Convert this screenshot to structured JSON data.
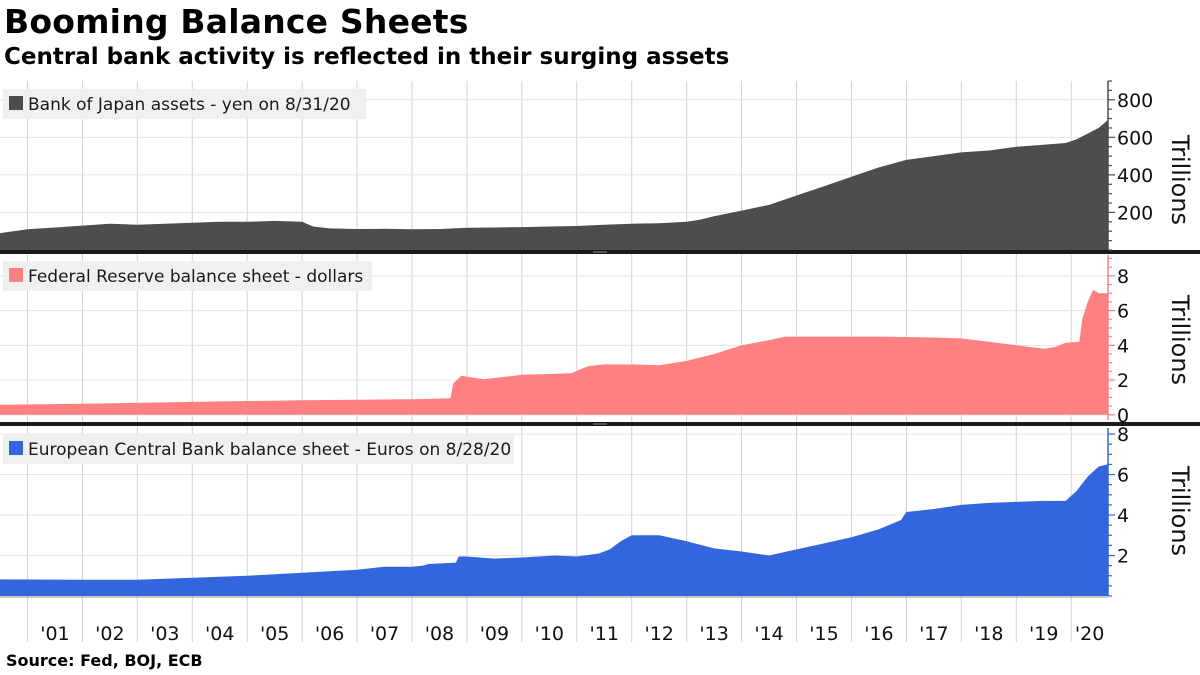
{
  "title": "Booming Balance Sheets",
  "subtitle": "Central bank activity is reflected in their surging assets",
  "source": "Source: Fed, BOJ, ECB",
  "x_axis": {
    "start": 2000.5,
    "end": 2020.67,
    "year_boundaries": [
      2001,
      2002,
      2003,
      2004,
      2005,
      2006,
      2007,
      2008,
      2009,
      2010,
      2011,
      2012,
      2013,
      2014,
      2015,
      2016,
      2017,
      2018,
      2019,
      2020
    ],
    "tick_labels": [
      "'01",
      "'02",
      "'03",
      "'04",
      "'05",
      "'06",
      "'07",
      "'08",
      "'09",
      "'10",
      "'11",
      "'12",
      "'13",
      "'14",
      "'15",
      "'16",
      "'17",
      "'18",
      "'19",
      "'20"
    ]
  },
  "chart_data": [
    {
      "type": "area",
      "title": "Bank of Japan assets - yen on 8/31/20",
      "legend": "Bank of Japan assets - yen on 8/31/20",
      "ylabel": "Trillions",
      "ylim": [
        0,
        900
      ],
      "yticks": [
        200,
        400,
        600,
        800
      ],
      "color": "#4d4d4d",
      "axis_color": "#4d4d4d",
      "x": [
        2000.5,
        2001.0,
        2001.5,
        2002.0,
        2002.5,
        2003.0,
        2003.5,
        2004.0,
        2004.5,
        2005.0,
        2005.5,
        2006.0,
        2006.2,
        2006.5,
        2007.0,
        2007.5,
        2008.0,
        2008.5,
        2009.0,
        2009.5,
        2010.0,
        2010.5,
        2011.0,
        2011.5,
        2012.0,
        2012.5,
        2013.0,
        2013.25,
        2013.5,
        2014.0,
        2014.5,
        2015.0,
        2015.5,
        2016.0,
        2016.5,
        2017.0,
        2017.5,
        2018.0,
        2018.5,
        2019.0,
        2019.5,
        2019.9,
        2020.1,
        2020.3,
        2020.5,
        2020.66
      ],
      "values": [
        90,
        110,
        120,
        130,
        140,
        135,
        140,
        145,
        150,
        150,
        155,
        150,
        125,
        115,
        112,
        113,
        110,
        112,
        118,
        120,
        122,
        125,
        128,
        135,
        140,
        142,
        150,
        162,
        180,
        210,
        240,
        290,
        340,
        390,
        440,
        480,
        500,
        520,
        530,
        550,
        560,
        570,
        590,
        620,
        650,
        690
      ]
    },
    {
      "type": "area",
      "title": "Federal Reserve balance sheet - dollars",
      "legend": "Federal Reserve balance sheet - dollars",
      "ylabel": "Trillions",
      "ylim": [
        -0.3,
        9.2
      ],
      "yticks": [
        0,
        2,
        4,
        6,
        8
      ],
      "color": "#ff8080",
      "axis_color": "#ff8080",
      "x": [
        2000.5,
        2002.0,
        2004.0,
        2006.0,
        2008.0,
        2008.7,
        2008.75,
        2008.9,
        2009.3,
        2009.6,
        2010.0,
        2010.5,
        2010.9,
        2011.2,
        2011.5,
        2012.0,
        2012.5,
        2013.0,
        2013.5,
        2014.0,
        2014.5,
        2014.8,
        2015.5,
        2016.5,
        2017.5,
        2018.0,
        2018.5,
        2019.0,
        2019.5,
        2019.7,
        2019.9,
        2020.15,
        2020.2,
        2020.3,
        2020.4,
        2020.5,
        2020.66
      ],
      "values": [
        0.58,
        0.64,
        0.74,
        0.84,
        0.9,
        0.95,
        1.8,
        2.25,
        2.05,
        2.15,
        2.3,
        2.35,
        2.4,
        2.8,
        2.9,
        2.9,
        2.85,
        3.1,
        3.5,
        4.0,
        4.3,
        4.5,
        4.5,
        4.5,
        4.45,
        4.4,
        4.2,
        4.0,
        3.8,
        3.9,
        4.15,
        4.2,
        5.5,
        6.5,
        7.2,
        7.0,
        7.0
      ]
    },
    {
      "type": "area",
      "title": "European Central Bank balance sheet - Euros on 8/28/20",
      "legend": "European Central Bank balance sheet - Euros on 8/28/20",
      "ylabel": "Trillions",
      "ylim": [
        0,
        8.3
      ],
      "yticks": [
        2,
        4,
        6,
        8
      ],
      "color": "#3366dd",
      "axis_color": "#3366dd",
      "x": [
        2000.5,
        2002.0,
        2003.0,
        2004.0,
        2005.0,
        2006.0,
        2007.0,
        2007.5,
        2008.0,
        2008.2,
        2008.3,
        2008.8,
        2008.85,
        2009.0,
        2009.5,
        2010.0,
        2010.6,
        2011.0,
        2011.4,
        2011.6,
        2011.8,
        2012.0,
        2012.5,
        2013.0,
        2013.5,
        2014.0,
        2014.5,
        2015.0,
        2015.5,
        2016.0,
        2016.5,
        2016.9,
        2017.0,
        2017.5,
        2018.0,
        2018.5,
        2019.0,
        2019.5,
        2019.9,
        2020.1,
        2020.3,
        2020.5,
        2020.66
      ],
      "values": [
        0.82,
        0.8,
        0.8,
        0.9,
        1.0,
        1.15,
        1.3,
        1.45,
        1.45,
        1.5,
        1.58,
        1.65,
        1.95,
        1.95,
        1.85,
        1.9,
        2.0,
        1.95,
        2.1,
        2.3,
        2.7,
        3.0,
        3.0,
        2.7,
        2.35,
        2.2,
        2.0,
        2.3,
        2.6,
        2.9,
        3.3,
        3.75,
        4.15,
        4.3,
        4.5,
        4.6,
        4.65,
        4.7,
        4.7,
        5.2,
        5.9,
        6.4,
        6.5
      ]
    }
  ]
}
